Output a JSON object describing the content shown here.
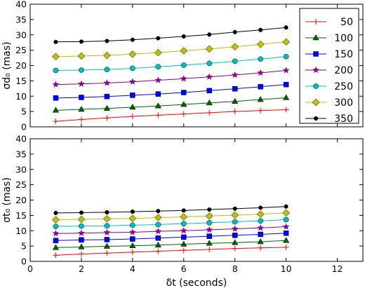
{
  "chart_data": [
    {
      "type": "line",
      "ylabel": "σd₀ (mas)",
      "xlabel": "",
      "xlim": [
        0,
        13
      ],
      "ylim": [
        0,
        40
      ],
      "xticks": [],
      "yticks": [
        0,
        5,
        10,
        15,
        20,
        25,
        30,
        35,
        40
      ],
      "x": [
        1,
        2,
        3,
        4,
        5,
        6,
        7,
        8,
        9,
        10
      ],
      "grid": false,
      "legend_position": "top-right",
      "series": [
        {
          "name": "50",
          "color": "#ff0000",
          "marker": "plus",
          "values": [
            1.8,
            2.4,
            2.9,
            3.4,
            3.8,
            4.2,
            4.6,
            5.0,
            5.3,
            5.6
          ]
        },
        {
          "name": "100",
          "color": "#006400",
          "marker": "triangle",
          "values": [
            5.4,
            5.7,
            6.0,
            6.4,
            6.8,
            7.3,
            7.8,
            8.3,
            8.9,
            9.5
          ]
        },
        {
          "name": "150",
          "color": "#0000ff",
          "marker": "square",
          "values": [
            9.4,
            9.6,
            9.9,
            10.3,
            10.7,
            11.2,
            11.8,
            12.4,
            13.1,
            13.8
          ]
        },
        {
          "name": "200",
          "color": "#8b008b",
          "marker": "star",
          "values": [
            13.8,
            14.0,
            14.3,
            14.7,
            15.2,
            15.7,
            16.3,
            16.9,
            17.6,
            18.4
          ]
        },
        {
          "name": "250",
          "color": "#00bfbf",
          "marker": "circle",
          "values": [
            18.4,
            18.5,
            18.7,
            19.1,
            19.6,
            20.1,
            20.7,
            21.4,
            22.1,
            22.9
          ]
        },
        {
          "name": "300",
          "color": "#bfbf00",
          "marker": "diamond",
          "values": [
            22.9,
            23.1,
            23.3,
            23.7,
            24.2,
            24.8,
            25.4,
            26.1,
            26.9,
            27.7
          ]
        },
        {
          "name": "350",
          "color": "#000000",
          "marker": "dot",
          "values": [
            27.7,
            27.8,
            28.0,
            28.4,
            28.9,
            29.5,
            30.1,
            30.9,
            31.6,
            32.4
          ]
        }
      ]
    },
    {
      "type": "line",
      "ylabel": "σt₀ (mas)",
      "xlabel": "δt (seconds)",
      "xlim": [
        0,
        13
      ],
      "ylim": [
        0,
        40
      ],
      "xticks": [
        0,
        2,
        4,
        6,
        8,
        10,
        12
      ],
      "yticks": [
        0,
        5,
        10,
        15,
        20,
        25,
        30,
        35,
        40
      ],
      "x": [
        1,
        2,
        3,
        4,
        5,
        6,
        7,
        8,
        9,
        10
      ],
      "grid": false,
      "series": [
        {
          "name": "50",
          "color": "#ff0000",
          "marker": "plus",
          "values": [
            2.0,
            2.4,
            2.7,
            3.0,
            3.3,
            3.6,
            3.9,
            4.2,
            4.4,
            4.6
          ]
        },
        {
          "name": "100",
          "color": "#006400",
          "marker": "triangle",
          "values": [
            4.5,
            4.7,
            4.9,
            5.1,
            5.3,
            5.6,
            5.9,
            6.1,
            6.4,
            6.8
          ]
        },
        {
          "name": "150",
          "color": "#0000ff",
          "marker": "square",
          "values": [
            6.8,
            7.0,
            7.1,
            7.3,
            7.6,
            7.9,
            8.2,
            8.5,
            8.8,
            9.2
          ]
        },
        {
          "name": "200",
          "color": "#8b008b",
          "marker": "star",
          "values": [
            9.1,
            9.2,
            9.4,
            9.5,
            9.8,
            10.0,
            10.3,
            10.6,
            10.9,
            11.3
          ]
        },
        {
          "name": "250",
          "color": "#00bfbf",
          "marker": "circle",
          "values": [
            11.4,
            11.5,
            11.6,
            11.8,
            12.0,
            12.3,
            12.6,
            12.9,
            13.2,
            13.6
          ]
        },
        {
          "name": "300",
          "color": "#bfbf00",
          "marker": "diamond",
          "values": [
            13.6,
            13.7,
            13.9,
            14.0,
            14.3,
            14.5,
            14.8,
            15.1,
            15.4,
            15.8
          ]
        },
        {
          "name": "350",
          "color": "#000000",
          "marker": "dot",
          "values": [
            15.8,
            15.9,
            16.0,
            16.2,
            16.4,
            16.6,
            16.9,
            17.2,
            17.5,
            17.9
          ]
        }
      ]
    }
  ]
}
